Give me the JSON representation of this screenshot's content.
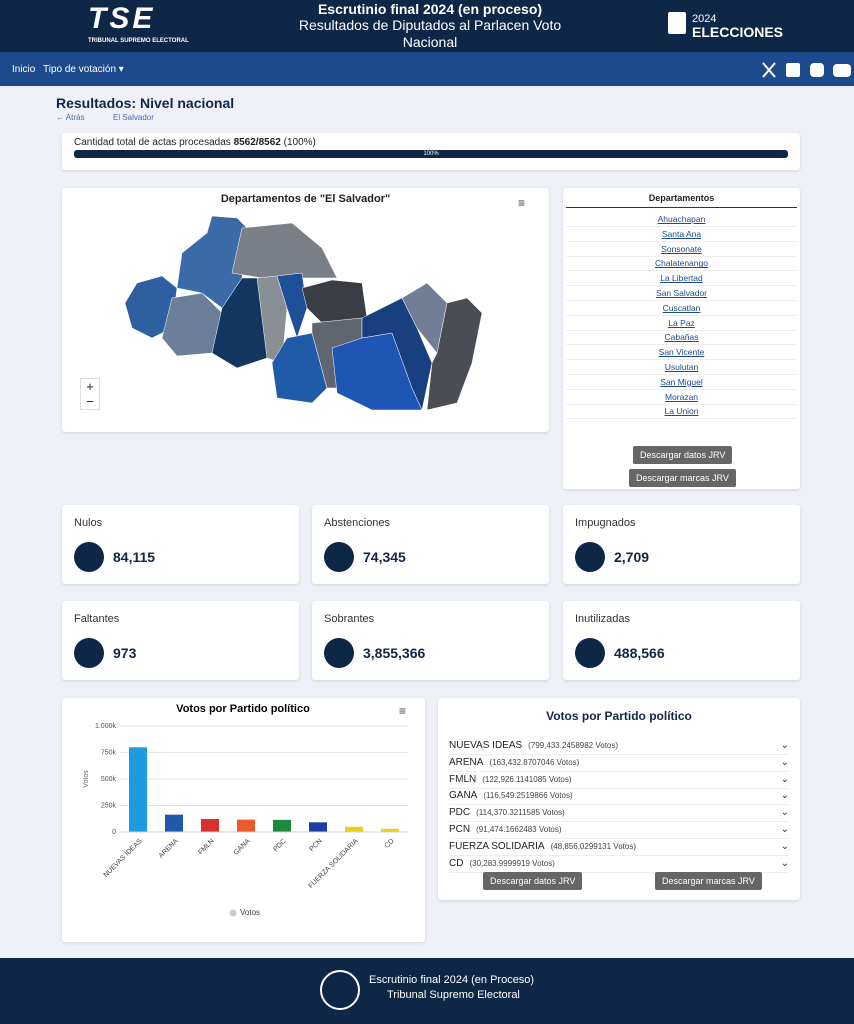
{
  "header": {
    "logo": "TSE",
    "logo_subtitle": "TRIBUNAL SUPREMO ELECTORAL",
    "title": "Escrutinio final 2024 (en proceso)",
    "subtitle": "Resultados de Diputados al Parlacen Voto Nacional",
    "brand_year": "2024",
    "brand_name": "ELECCIONES"
  },
  "nav": {
    "items": [
      "Inicio",
      "Tipo de votación"
    ]
  },
  "results": {
    "title": "Resultados: Nivel nacional",
    "back": "Atrás",
    "breadcrumb": "El Salvador",
    "progress_text": "Cantidad total de actas procesadas",
    "progress_count": "8562/8562",
    "progress_percent": "(100%)",
    "progress_bar": {
      "value": 100,
      "label": "100%"
    }
  },
  "map": {
    "title": "Departamentos de \"El Salvador\"",
    "zoom_in": "+",
    "zoom_out": "−"
  },
  "departments": {
    "title": "Departamentos",
    "items": [
      "Ahuachapan",
      "Santa Ana",
      "Sonsonate",
      "Chalatenango",
      "La Libertad",
      "San Salvador",
      "Cuscatlan",
      "La Paz",
      "Cabañas",
      "San Vicente",
      "Usulutan",
      "San Miguel",
      "Morazan",
      "La Union"
    ],
    "buttons": [
      "Descargar datos JRV",
      "Descargar marcas JRV"
    ]
  },
  "stats": [
    {
      "label": "Nulos",
      "value": "84,115"
    },
    {
      "label": "Abstenciones",
      "value": "74,345"
    },
    {
      "label": "Impugnados",
      "value": "2,709"
    },
    {
      "label": "Faltantes",
      "value": "973"
    },
    {
      "label": "Sobrantes",
      "value": "3,855,366"
    },
    {
      "label": "Inutilizadas",
      "value": "488,566"
    }
  ],
  "chart_data": {
    "type": "bar",
    "title": "Votos por Partido político",
    "y_label": "Votos",
    "legend": "Votos",
    "categories": [
      "NUEVAS IDEAS",
      "ARENA",
      "FMLN",
      "GANA",
      "PDC",
      "PCN",
      "FUERZA SOLIDARIA",
      "CD"
    ],
    "values": [
      799433.2458982,
      163432.8707046,
      122926.1141085,
      116549.2519866,
      114370.3211585,
      91474.1662483,
      48856.0299131,
      30283.9999919
    ],
    "colors": [
      "#1e9be0",
      "#1f5aa8",
      "#d8312c",
      "#ea5a2c",
      "#1b8a3a",
      "#1c3fa6",
      "#e6d21c",
      "#e6d21c"
    ],
    "ylim": [
      0,
      1000000
    ],
    "yticks": [
      0,
      {
        "value": 250000,
        "label": "250k"
      },
      {
        "value": 500000,
        "label": "500k"
      },
      {
        "value": 750000,
        "label": "750k"
      },
      {
        "value": 1000000,
        "label": "1.000k"
      }
    ],
    "grid": true
  },
  "party_totals": {
    "title": "Votos por Partido político",
    "items": [
      {
        "name": "NUEVAS IDEAS",
        "votes": "(799,433.2458982 Votos)"
      },
      {
        "name": "ARENA",
        "votes": "(163,432.8707046 Votos)"
      },
      {
        "name": "FMLN",
        "votes": "(122,926.1141085 Votos)"
      },
      {
        "name": "GANA",
        "votes": "(116,549.2519866 Votos)"
      },
      {
        "name": "PDC",
        "votes": "(114,370.3211585 Votos)"
      },
      {
        "name": "PCN",
        "votes": "(91,474.1662483 Votos)"
      },
      {
        "name": "FUERZA SOLIDARIA",
        "votes": "(48,856.0299131 Votos)"
      },
      {
        "name": "CD",
        "votes": "(30,283.9999919 Votos)"
      }
    ],
    "buttons": [
      "Descargar datos JRV",
      "Descargar marcas JRV"
    ]
  },
  "footer": {
    "line1": "Escrutinio final 2024 (en Proceso)",
    "line2": "Tribunal Supremo Electoral"
  }
}
